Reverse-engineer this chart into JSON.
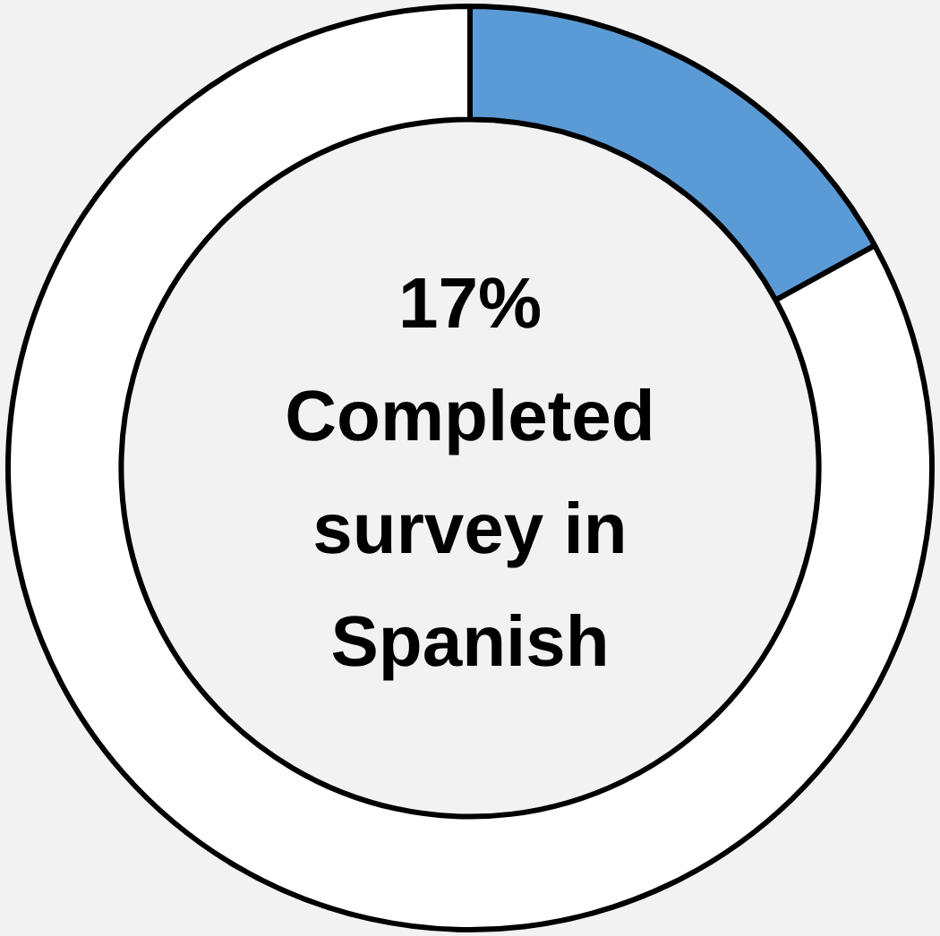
{
  "chart_data": {
    "type": "donut",
    "categories": [
      null,
      null
    ],
    "values": [
      17,
      83
    ],
    "colors": [
      "#5b9bd5",
      "#ffffff"
    ],
    "value_labels": [
      "17%",
      null
    ],
    "annotations": [
      "Completed survey in Spanish"
    ],
    "legend": false
  }
}
